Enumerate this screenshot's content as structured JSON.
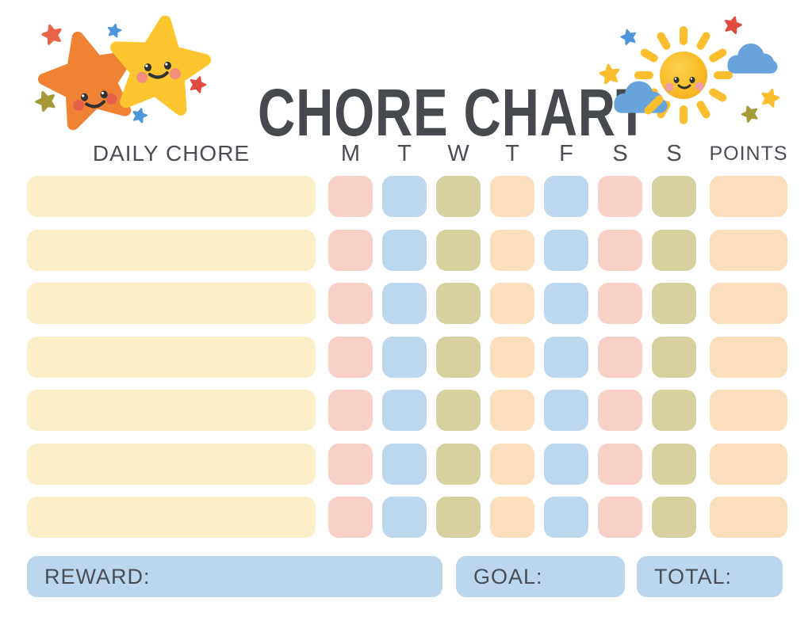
{
  "title": "CHORE CHART",
  "header": {
    "chore_column_label": "DAILY CHORE",
    "day_labels": [
      "M",
      "T",
      "W",
      "T",
      "F",
      "S",
      "S"
    ],
    "points_label": "POINTS"
  },
  "grid": {
    "row_count": 7,
    "chore_cell_color": "cream",
    "day_cell_colors": [
      "pink",
      "blue",
      "olive",
      "peach",
      "blue",
      "pink",
      "olive"
    ],
    "points_cell_color": "peach",
    "cells_are_blank": true
  },
  "footer": {
    "reward_label": "REWARD:",
    "reward_value": "",
    "goal_label": "GOAL:",
    "goal_value": "",
    "total_label": "TOTAL:",
    "total_value": ""
  },
  "decorations": {
    "left_icons": [
      "orange-star-face-icon",
      "yellow-star-face-icon",
      "mini-star-icons"
    ],
    "right_icons": [
      "smiling-sun-icon",
      "cloud-icons",
      "mini-star-icons"
    ]
  },
  "colors": {
    "page_bg": "#FFFFFF",
    "text": "#4A4E54",
    "title_text": "#46494E",
    "pink": "#F9D0C8",
    "blue": "#BDD7EE",
    "olive": "#D7D1A0",
    "peach": "#FBDFBC",
    "cream": "#FBEFC7",
    "footer_box": "#BCD7ED",
    "star_orange": "#F08233",
    "star_yellow": "#FDC630",
    "sun": "#FBBE2E",
    "cloud": "#68A4DB",
    "mini_star_red": "#E04B3F",
    "mini_star_red_orange": "#E8654B",
    "mini_star_blue": "#4D96D9",
    "mini_star_olive": "#A49A38",
    "face_dark": "#2F3133",
    "cheek_orange_star": "#E4604A",
    "cheek_yellow_star": "#F08F7E",
    "cheek_sun": "#EE9E9E"
  }
}
